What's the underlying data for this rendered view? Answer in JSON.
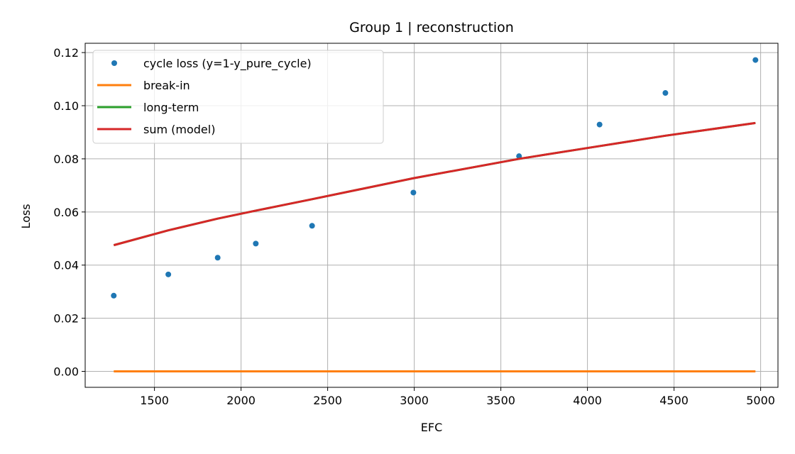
{
  "chart_data": {
    "type": "line",
    "title": "Group 1 | reconstruction",
    "xlabel": "EFC",
    "ylabel": "Loss",
    "xlim": [
      1100,
      5100
    ],
    "ylim": [
      -0.006,
      0.1235
    ],
    "xticks": [
      1500,
      2000,
      2500,
      3000,
      3500,
      4000,
      4500,
      5000
    ],
    "yticks": [
      0.0,
      0.02,
      0.04,
      0.06,
      0.08,
      0.1,
      0.12
    ],
    "xtick_labels": [
      "1500",
      "2000",
      "2500",
      "3000",
      "3500",
      "4000",
      "4500",
      "5000"
    ],
    "ytick_labels": [
      "0.00",
      "0.02",
      "0.04",
      "0.06",
      "0.08",
      "0.10",
      "0.12"
    ],
    "grid": true,
    "legend_position": "top-left",
    "series": [
      {
        "name": "cycle loss (y=1-y_pure_cycle)",
        "kind": "scatter",
        "color": "#1f77b4",
        "x": [
          1265,
          1580,
          1865,
          2085,
          2410,
          2995,
          3605,
          4070,
          4450,
          4970
        ],
        "y": [
          0.0285,
          0.0365,
          0.0428,
          0.0481,
          0.0548,
          0.0673,
          0.081,
          0.0929,
          0.1048,
          0.1172
        ]
      },
      {
        "name": "break-in",
        "kind": "line",
        "color": "#ff7f0e",
        "x": [
          1265,
          4970
        ],
        "y": [
          0.0,
          0.0
        ]
      },
      {
        "name": "long-term",
        "kind": "line",
        "color": "#2ca02c",
        "x": [
          1265,
          1580,
          1865,
          2085,
          2410,
          2995,
          3605,
          4070,
          4450,
          4970
        ],
        "y": [
          0.0475,
          0.0531,
          0.0575,
          0.0605,
          0.0648,
          0.0727,
          0.08,
          0.0848,
          0.0887,
          0.0935
        ]
      },
      {
        "name": "sum (model)",
        "kind": "line",
        "color": "#d62728",
        "x": [
          1265,
          1580,
          1865,
          2085,
          2410,
          2995,
          3605,
          4070,
          4450,
          4970
        ],
        "y": [
          0.0475,
          0.0531,
          0.0575,
          0.0605,
          0.0648,
          0.0727,
          0.08,
          0.0848,
          0.0887,
          0.0935
        ]
      }
    ]
  }
}
